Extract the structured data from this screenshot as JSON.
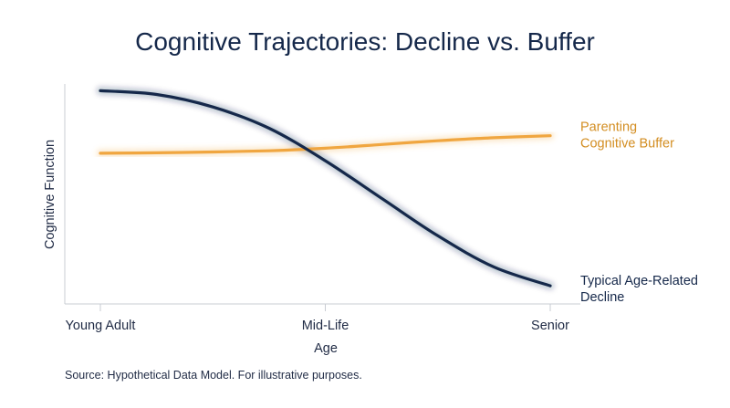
{
  "chart_data": {
    "type": "line",
    "title": "Cognitive Trajectories: Decline vs. Buffer",
    "xlabel": "Age",
    "ylabel": "Cognitive Function",
    "categories": [
      "Young Adult",
      "Mid-Life",
      "Senior"
    ],
    "x": [
      0,
      0.25,
      0.5,
      0.75,
      1.0,
      1.25,
      1.5,
      1.75,
      2.0
    ],
    "ylim": [
      0,
      100
    ],
    "grid": false,
    "series": [
      {
        "name": "Typical Age-Related Decline",
        "label_lines": [
          "Typical Age-Related",
          "Decline"
        ],
        "color": "#15284a",
        "values": [
          90,
          88.5,
          83.5,
          75,
          62,
          47,
          32,
          19.5,
          12
        ]
      },
      {
        "name": "Parenting Cognitive Buffer",
        "label_lines": [
          "Parenting",
          "Cognitive Buffer"
        ],
        "color": "#f0a640",
        "values": [
          65,
          65.2,
          65.5,
          66,
          67,
          68.5,
          70,
          71.2,
          72
        ]
      }
    ],
    "source": "Source: Hypothetical Data Model. For illustrative purposes."
  }
}
